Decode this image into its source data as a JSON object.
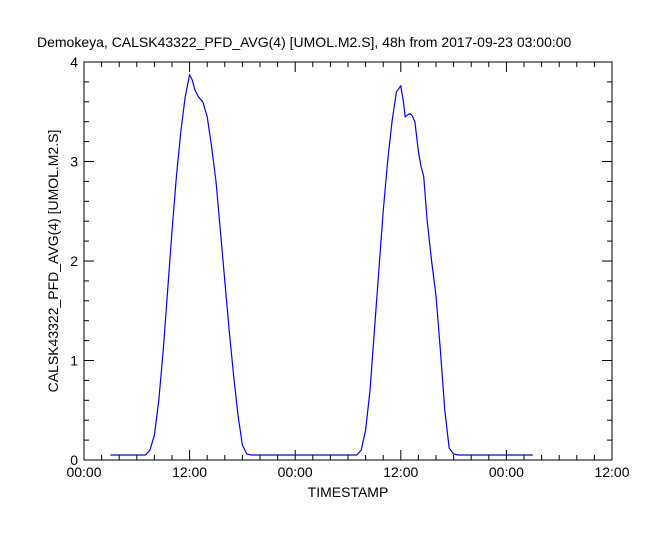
{
  "chart_data": {
    "type": "line",
    "title": "Demokeya, CALSK43322_PFD_AVG(4) [UMOL.M2.S], 48h from  2017-09-23 03:00:00",
    "xlabel": "TIMESTAMP",
    "ylabel": "CALSK43322_PFD_AVG(4) [UMOL.M2.S]",
    "x_unit": "hours after 2017-09-23 00:00",
    "xlim": [
      0,
      60
    ],
    "ylim": [
      0,
      4
    ],
    "x_ticks": [
      {
        "value": 0,
        "label": "00:00"
      },
      {
        "value": 12,
        "label": "12:00"
      },
      {
        "value": 24,
        "label": "00:00"
      },
      {
        "value": 36,
        "label": "12:00"
      },
      {
        "value": 48,
        "label": "00:00"
      },
      {
        "value": 60,
        "label": "12:00"
      }
    ],
    "y_ticks": [
      {
        "value": 0,
        "label": "0"
      },
      {
        "value": 1,
        "label": "1"
      },
      {
        "value": 2,
        "label": "2"
      },
      {
        "value": 3,
        "label": "3"
      },
      {
        "value": 4,
        "label": "4"
      }
    ],
    "grid": false,
    "line_color": "#0000ff",
    "series": [
      {
        "x": [
          3,
          5,
          7,
          7.5,
          8,
          8.5,
          9,
          9.5,
          10,
          10.5,
          11,
          11.5,
          12,
          12.3,
          12.6,
          13,
          13.5,
          14,
          14.5,
          15,
          15.5,
          16,
          16.5,
          17,
          17.5,
          18,
          18.5,
          19,
          20,
          24,
          30,
          31,
          31.5,
          32,
          32.5,
          33,
          33.5,
          34,
          34.5,
          35,
          35.5,
          36,
          36.3,
          36.5,
          36.8,
          37,
          37.3,
          37.6,
          38,
          38.3,
          38.6,
          39,
          39.5,
          40,
          40.5,
          41,
          41.5,
          42,
          42.5,
          43,
          44,
          48,
          51
        ],
        "y": [
          0.05,
          0.05,
          0.05,
          0.1,
          0.25,
          0.6,
          1.1,
          1.7,
          2.3,
          2.85,
          3.3,
          3.65,
          3.87,
          3.82,
          3.72,
          3.65,
          3.6,
          3.45,
          3.15,
          2.8,
          2.3,
          1.8,
          1.3,
          0.85,
          0.45,
          0.15,
          0.06,
          0.05,
          0.05,
          0.05,
          0.05,
          0.05,
          0.1,
          0.3,
          0.7,
          1.3,
          1.9,
          2.5,
          3.0,
          3.4,
          3.7,
          3.76,
          3.6,
          3.45,
          3.47,
          3.48,
          3.46,
          3.4,
          3.1,
          2.95,
          2.85,
          2.4,
          2.0,
          1.65,
          1.1,
          0.5,
          0.12,
          0.06,
          0.05,
          0.05,
          0.05,
          0.05,
          0.05
        ]
      }
    ]
  }
}
